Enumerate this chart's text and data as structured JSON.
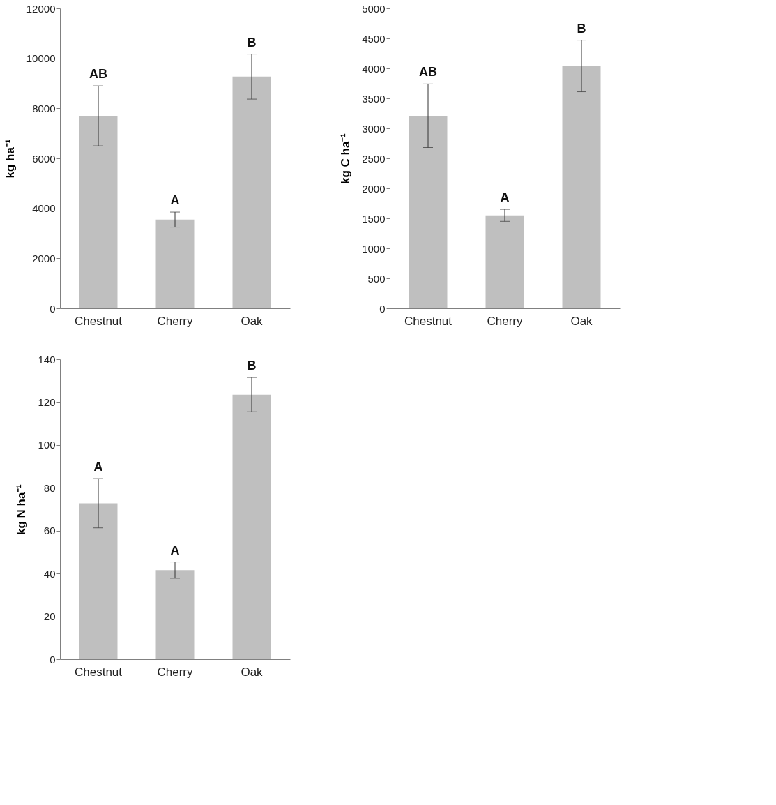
{
  "chart_data": [
    {
      "type": "bar",
      "ylabel": "kg ha⁻¹",
      "categories": [
        "Chestnut",
        "Cherry",
        "Oak"
      ],
      "series": [
        {
          "color": "#bfbfbf",
          "values": [
            7700,
            3550,
            9270
          ],
          "errors": [
            1200,
            300,
            900
          ]
        }
      ],
      "ylim": [
        0,
        12000
      ],
      "yticks": [
        0,
        2000,
        4000,
        6000,
        8000,
        10000,
        12000
      ],
      "grid": false,
      "annotations": [
        {
          "text": "AB",
          "x": "Chestnut",
          "y": 8900
        },
        {
          "text": "A",
          "x": "Cherry",
          "y": 3850
        },
        {
          "text": "B",
          "x": "Oak",
          "y": 10170
        }
      ]
    },
    {
      "type": "bar",
      "ylabel": "kg C ha⁻¹",
      "categories": [
        "Chestnut",
        "Cherry",
        "Oak"
      ],
      "series": [
        {
          "color": "#bfbfbf",
          "values": [
            3210,
            1550,
            4040
          ],
          "errors": [
            530,
            100,
            430
          ]
        }
      ],
      "ylim": [
        0,
        5000
      ],
      "yticks": [
        0,
        500,
        1000,
        1500,
        2000,
        2500,
        3000,
        3500,
        4000,
        4500,
        5000
      ],
      "grid": false,
      "annotations": [
        {
          "text": "AB",
          "x": "Chestnut",
          "y": 3740
        },
        {
          "text": "A",
          "x": "Cherry",
          "y": 1650
        },
        {
          "text": "B",
          "x": "Oak",
          "y": 4470
        }
      ]
    },
    {
      "type": "bar",
      "ylabel": "kg N ha⁻¹",
      "categories": [
        "Chestnut",
        "Cherry",
        "Oak"
      ],
      "series": [
        {
          "color": "#bfbfbf",
          "values": [
            72.8,
            41.6,
            123.5
          ],
          "errors": [
            11.5,
            3.8,
            8
          ]
        }
      ],
      "ylim": [
        0,
        140
      ],
      "yticks": [
        0,
        20,
        40,
        60,
        80,
        100,
        120,
        140
      ],
      "grid": false,
      "annotations": [
        {
          "text": "A",
          "x": "Chestnut",
          "y": 84.3
        },
        {
          "text": "A",
          "x": "Cherry",
          "y": 45.4
        },
        {
          "text": "B",
          "x": "Oak",
          "y": 131.5
        }
      ]
    }
  ]
}
